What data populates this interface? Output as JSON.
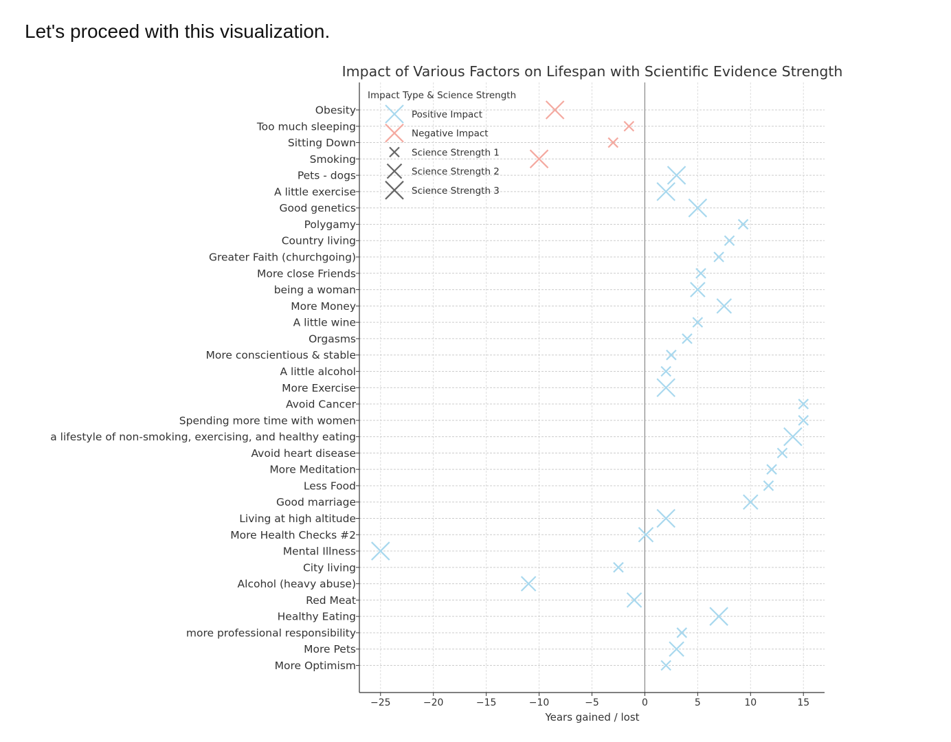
{
  "intro_text": "Let's proceed with this visualization.",
  "chart_data": {
    "type": "scatter",
    "title": "Impact of Various Factors on Lifespan with Scientific Evidence Strength",
    "xlabel": "Years gained / lost",
    "ylabel": "",
    "xlim": [
      -27,
      17
    ],
    "xticks": [
      -25,
      -20,
      -15,
      -10,
      -5,
      0,
      5,
      10,
      15
    ],
    "xtick_labels": [
      "−25",
      "−20",
      "−15",
      "−10",
      "−5",
      "0",
      "5",
      "10",
      "15"
    ],
    "grid": true,
    "legend": {
      "title": "Impact Type & Science Strength",
      "placement": "top-left",
      "entries": [
        {
          "label": "Positive Impact",
          "color": "#a8d8ee",
          "strength": 3
        },
        {
          "label": "Negative Impact",
          "color": "#f4a9a0",
          "strength": 3
        },
        {
          "label": "Science Strength 1",
          "color": "#666666",
          "strength": 1
        },
        {
          "label": "Science Strength 2",
          "color": "#666666",
          "strength": 2
        },
        {
          "label": "Science Strength 3",
          "color": "#666666",
          "strength": 3
        }
      ]
    },
    "colors": {
      "positive": "#a8d8ee",
      "negative": "#f4a9a0"
    },
    "points": [
      {
        "factor": "Obesity",
        "years": -8.5,
        "impact": "negative",
        "strength": 3
      },
      {
        "factor": "Too much sleeping",
        "years": -1.5,
        "impact": "negative",
        "strength": 1
      },
      {
        "factor": "Sitting Down",
        "years": -3,
        "impact": "negative",
        "strength": 1
      },
      {
        "factor": "Smoking",
        "years": -10,
        "impact": "negative",
        "strength": 3
      },
      {
        "factor": "Pets - dogs",
        "years": 3,
        "impact": "positive",
        "strength": 3
      },
      {
        "factor": "A little exercise",
        "years": 2,
        "impact": "positive",
        "strength": 3
      },
      {
        "factor": "Good genetics",
        "years": 5,
        "impact": "positive",
        "strength": 3
      },
      {
        "factor": "Polygamy",
        "years": 9.3,
        "impact": "positive",
        "strength": 1
      },
      {
        "factor": "Country living",
        "years": 8,
        "impact": "positive",
        "strength": 1
      },
      {
        "factor": "Greater Faith (churchgoing)",
        "years": 7,
        "impact": "positive",
        "strength": 1
      },
      {
        "factor": "More close Friends",
        "years": 5.3,
        "impact": "positive",
        "strength": 1
      },
      {
        "factor": "being a woman",
        "years": 5,
        "impact": "positive",
        "strength": 2
      },
      {
        "factor": "More Money",
        "years": 7.5,
        "impact": "positive",
        "strength": 2
      },
      {
        "factor": "A little wine",
        "years": 5,
        "impact": "positive",
        "strength": 1
      },
      {
        "factor": "Orgasms",
        "years": 4,
        "impact": "positive",
        "strength": 1
      },
      {
        "factor": "More conscientious & stable",
        "years": 2.5,
        "impact": "positive",
        "strength": 1
      },
      {
        "factor": "A little alcohol",
        "years": 2,
        "impact": "positive",
        "strength": 1
      },
      {
        "factor": "More Exercise",
        "years": 2,
        "impact": "positive",
        "strength": 3
      },
      {
        "factor": "Avoid Cancer",
        "years": 15,
        "impact": "positive",
        "strength": 1
      },
      {
        "factor": "Spending more time with women",
        "years": 15,
        "impact": "positive",
        "strength": 1
      },
      {
        "factor": "a lifestyle of non-smoking, exercising, and healthy eating",
        "years": 14,
        "impact": "positive",
        "strength": 3
      },
      {
        "factor": "Avoid heart disease",
        "years": 13,
        "impact": "positive",
        "strength": 1
      },
      {
        "factor": "More Meditation",
        "years": 12,
        "impact": "positive",
        "strength": 1
      },
      {
        "factor": "Less Food",
        "years": 11.7,
        "impact": "positive",
        "strength": 1
      },
      {
        "factor": "Good marriage",
        "years": 10,
        "impact": "positive",
        "strength": 2
      },
      {
        "factor": "Living at high altitude",
        "years": 2,
        "impact": "positive",
        "strength": 3
      },
      {
        "factor": "More Health Checks #2",
        "years": 0.1,
        "impact": "positive",
        "strength": 2
      },
      {
        "factor": "Mental Illness",
        "years": -25,
        "impact": "positive",
        "strength": 3
      },
      {
        "factor": "City living",
        "years": -2.5,
        "impact": "positive",
        "strength": 1
      },
      {
        "factor": "Alcohol (heavy abuse)",
        "years": -11,
        "impact": "positive",
        "strength": 2
      },
      {
        "factor": "Red Meat",
        "years": -1,
        "impact": "positive",
        "strength": 2
      },
      {
        "factor": "Healthy Eating",
        "years": 7,
        "impact": "positive",
        "strength": 3
      },
      {
        "factor": "more professional responsibility",
        "years": 3.5,
        "impact": "positive",
        "strength": 1
      },
      {
        "factor": "More Pets",
        "years": 3,
        "impact": "positive",
        "strength": 2
      },
      {
        "factor": "More Optimism",
        "years": 2,
        "impact": "positive",
        "strength": 1
      }
    ]
  }
}
